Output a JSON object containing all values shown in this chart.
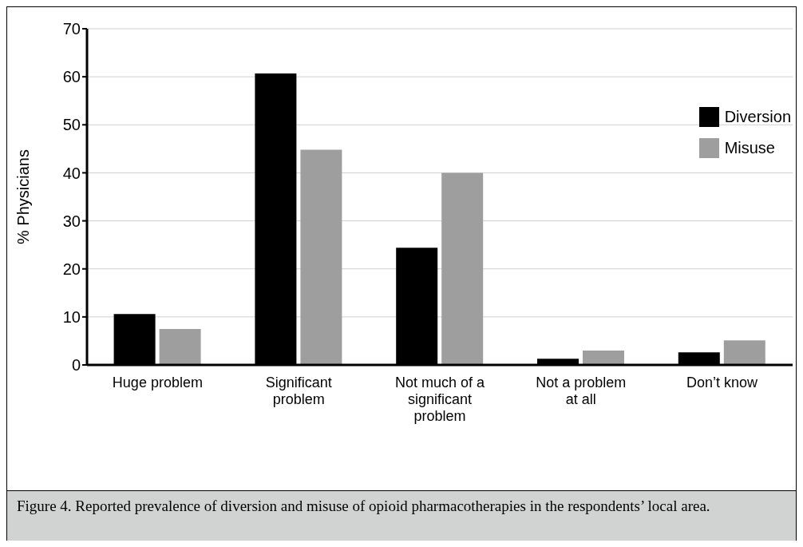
{
  "chart_data": {
    "type": "bar",
    "ylabel": "% Physicians",
    "categories": [
      "Huge problem",
      "Significant problem",
      "Not much of a significant problem",
      "Not a problem at all",
      "Don’t know"
    ],
    "series": [
      {
        "name": "Diversion",
        "color": "#000000",
        "values": [
          10.6,
          60.7,
          24.4,
          1.3,
          2.6
        ]
      },
      {
        "name": "Misuse",
        "color": "#9d9e9d",
        "values": [
          7.5,
          44.8,
          40,
          3,
          5.1
        ]
      }
    ],
    "ylim": [
      0,
      70
    ],
    "yticks": [
      0,
      10,
      20,
      30,
      40,
      50,
      60,
      70
    ],
    "grid": "y",
    "legend": "top right",
    "annotations": [
      "Figure 4. Reported prevalence of diversion and misuse of opioid pharmacotherapies in the respondents’ local area."
    ]
  }
}
